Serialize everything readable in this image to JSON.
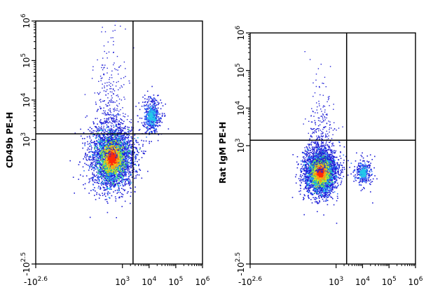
{
  "chart_data": [
    {
      "type": "scatter",
      "subtype": "flow-cytometry-density",
      "ylabel": "CD49b PE-H",
      "xlabel": "",
      "x_scale": "biexponential",
      "y_scale": "biexponential",
      "x_ticks": [
        {
          "label": "-10",
          "sup": "2.6",
          "value": -398
        },
        {
          "label": "10",
          "sup": "3",
          "value": 1000
        },
        {
          "label": "10",
          "sup": "4",
          "value": 10000
        },
        {
          "label": "10",
          "sup": "5",
          "value": 100000
        },
        {
          "label": "10",
          "sup": "6",
          "value": 1000000
        }
      ],
      "y_ticks": [
        {
          "label": "-10",
          "sup": "2.5",
          "value": -316
        },
        {
          "label": "10",
          "sup": "3",
          "value": 1000
        },
        {
          "label": "10",
          "sup": "4",
          "value": 10000
        },
        {
          "label": "10",
          "sup": "5",
          "value": 100000
        },
        {
          "label": "10",
          "sup": "6",
          "value": 1000000
        }
      ],
      "gate": {
        "x": 2500,
        "y": 1400
      },
      "populations": [
        {
          "name": "main",
          "x_center": 400,
          "y_center": 350,
          "spread": "large",
          "density": "high"
        },
        {
          "name": "upper-right",
          "x_center": 12000,
          "y_center": 4000,
          "spread": "small",
          "density": "medium"
        }
      ],
      "grid": false,
      "legend": "none"
    },
    {
      "type": "scatter",
      "subtype": "flow-cytometry-density",
      "ylabel": "Rat IgM PE-H",
      "xlabel": "",
      "x_scale": "biexponential",
      "y_scale": "biexponential",
      "x_ticks": [
        {
          "label": "-10",
          "sup": "2.6",
          "value": -398
        },
        {
          "label": "10",
          "sup": "3",
          "value": 1000
        },
        {
          "label": "10",
          "sup": "4",
          "value": 10000
        },
        {
          "label": "10",
          "sup": "5",
          "value": 100000
        },
        {
          "label": "10",
          "sup": "6",
          "value": 1000000
        }
      ],
      "y_ticks": [
        {
          "label": "-10",
          "sup": "2.5",
          "value": -316
        },
        {
          "label": "10",
          "sup": "3",
          "value": 1000
        },
        {
          "label": "10",
          "sup": "4",
          "value": 10000
        },
        {
          "label": "10",
          "sup": "5",
          "value": 100000
        },
        {
          "label": "10",
          "sup": "6",
          "value": 1000000
        }
      ],
      "gate": {
        "x": 2500,
        "y": 1400
      },
      "populations": [
        {
          "name": "main",
          "x_center": 250,
          "y_center": 200,
          "spread": "medium",
          "density": "high"
        },
        {
          "name": "lower-right",
          "x_center": 10000,
          "y_center": 200,
          "spread": "small",
          "density": "low"
        }
      ],
      "grid": false,
      "legend": "none"
    }
  ],
  "colors": {
    "density_scale": [
      "#1f1fd6",
      "#2f78ff",
      "#22c8e8",
      "#3fd86a",
      "#d8e81e",
      "#ff9a14",
      "#ff2a0a"
    ],
    "axis": "#000000",
    "gate": "#000000"
  }
}
